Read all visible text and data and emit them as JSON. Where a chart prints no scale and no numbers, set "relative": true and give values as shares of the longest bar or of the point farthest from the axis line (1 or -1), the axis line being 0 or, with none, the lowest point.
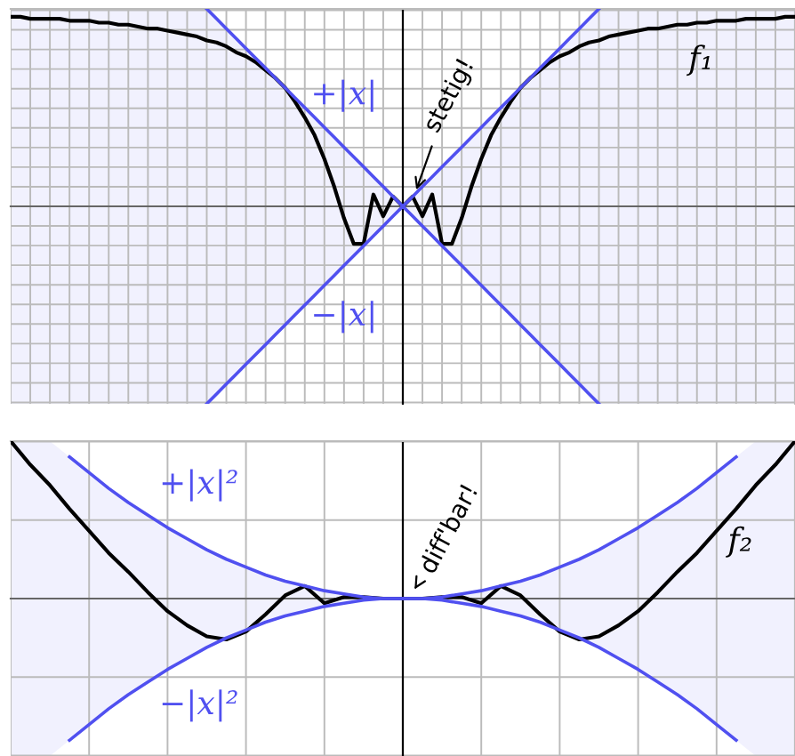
{
  "chart_data": [
    {
      "type": "line",
      "relative": true,
      "grid": true,
      "legend": false,
      "marker": "none",
      "line_style": "solid",
      "categories": [
        null,
        null,
        null,
        null,
        null,
        null,
        null,
        null,
        null,
        null,
        null,
        null,
        null,
        null,
        null,
        null,
        null,
        null,
        null,
        null,
        null,
        null,
        null,
        null,
        null,
        null,
        null,
        null,
        null,
        null,
        null,
        null,
        null,
        null,
        null,
        null,
        null,
        null,
        null,
        null,
        null,
        null,
        null,
        null,
        null,
        null,
        null,
        null,
        null,
        null,
        null,
        null,
        null,
        null,
        null,
        null,
        null,
        null,
        null,
        null,
        null,
        null,
        null,
        null,
        null,
        null,
        null,
        null,
        null,
        null,
        null,
        null,
        null,
        null,
        null,
        null,
        null,
        null,
        null,
        null,
        null
      ],
      "series": [
        {
          "name": "f₁",
          "color": "#000000",
          "values": [
            0.96,
            0.96,
            0.95,
            0.95,
            0.95,
            0.95,
            0.94,
            0.94,
            0.94,
            0.93,
            0.93,
            0.92,
            0.92,
            0.91,
            0.9,
            0.9,
            0.89,
            0.88,
            0.87,
            0.86,
            0.84,
            0.83,
            0.81,
            0.78,
            0.76,
            0.73,
            0.69,
            0.65,
            0.6,
            0.53,
            0.45,
            0.36,
            0.24,
            0.1,
            -0.06,
            -0.19,
            -0.19,
            0.06,
            -0.05,
            0.05,
            0,
            0.05,
            -0.05,
            0.06,
            -0.19,
            -0.19,
            -0.06,
            0.1,
            0.24,
            0.36,
            0.45,
            0.53,
            0.6,
            0.65,
            0.69,
            0.73,
            0.76,
            0.78,
            0.81,
            0.83,
            0.84,
            0.86,
            0.87,
            0.88,
            0.89,
            0.9,
            0.9,
            0.91,
            0.92,
            0.92,
            0.93,
            0.93,
            0.94,
            0.94,
            0.94,
            0.95,
            0.95,
            0.95,
            0.95,
            0.96,
            0.96
          ],
          "upper": [
            1,
            1,
            1,
            1,
            1,
            1,
            1,
            1,
            1,
            1,
            1,
            1,
            1,
            1,
            1,
            1,
            1,
            1,
            1,
            1,
            1,
            0.95,
            0.9,
            0.85,
            0.8,
            0.75,
            0.7,
            0.65,
            0.6,
            0.55,
            0.5,
            0.45,
            0.4,
            0.35,
            0.3,
            0.25,
            0.2,
            0.15,
            0.1,
            0.05,
            0,
            0.05,
            0.1,
            0.15,
            0.2,
            0.25,
            0.3,
            0.35,
            0.4,
            0.45,
            0.5,
            0.55,
            0.6,
            0.65,
            0.7,
            0.75,
            0.8,
            0.85,
            0.9,
            0.95,
            1,
            1,
            1,
            1,
            1,
            1,
            1,
            1,
            1,
            1,
            1,
            1,
            1,
            1,
            1,
            1,
            1,
            1,
            1,
            1,
            1
          ],
          "lower": [
            -1,
            -1,
            -1,
            -1,
            -1,
            -1,
            -1,
            -1,
            -1,
            -1,
            -1,
            -1,
            -1,
            -1,
            -1,
            -1,
            -1,
            -1,
            -1,
            -1,
            -1,
            -0.95,
            -0.9,
            -0.85,
            -0.8,
            -0.75,
            -0.7,
            -0.65,
            -0.6,
            -0.55,
            -0.5,
            -0.45,
            -0.4,
            -0.35,
            -0.3,
            -0.25,
            -0.2,
            -0.15,
            -0.1,
            -0.05,
            0,
            -0.05,
            -0.1,
            -0.15,
            -0.2,
            -0.25,
            -0.3,
            -0.35,
            -0.4,
            -0.45,
            -0.5,
            -0.55,
            -0.6,
            -0.65,
            -0.7,
            -0.75,
            -0.8,
            -0.85,
            -0.9,
            -0.95,
            -1,
            -1,
            -1,
            -1,
            -1,
            -1,
            -1,
            -1,
            -1,
            -1,
            -1,
            -1,
            -1,
            -1,
            -1,
            -1,
            -1,
            -1,
            -1,
            -1,
            -1
          ]
        },
        {
          "name": "+|x|",
          "color": "#5050f0",
          "values": [
            null,
            null,
            null,
            null,
            null,
            null,
            null,
            null,
            null,
            null,
            null,
            null,
            null,
            null,
            null,
            null,
            null,
            null,
            null,
            null,
            1,
            0.95,
            0.9,
            0.85,
            0.8,
            0.75,
            0.7,
            0.65,
            0.6,
            0.55,
            0.5,
            0.45,
            0.4,
            0.35,
            0.3,
            0.25,
            0.2,
            0.15,
            0.1,
            0.05,
            0,
            0.05,
            0.1,
            0.15,
            0.2,
            0.25,
            0.3,
            0.35,
            0.4,
            0.45,
            0.5,
            0.55,
            0.6,
            0.65,
            0.7,
            0.75,
            0.8,
            0.85,
            0.9,
            0.95,
            1,
            null,
            null,
            null,
            null,
            null,
            null,
            null,
            null,
            null,
            null,
            null,
            null,
            null,
            null,
            null,
            null,
            null,
            null,
            null,
            null
          ]
        },
        {
          "name": "−|x|",
          "color": "#5050f0",
          "values": [
            null,
            null,
            null,
            null,
            null,
            null,
            null,
            null,
            null,
            null,
            null,
            null,
            null,
            null,
            null,
            null,
            null,
            null,
            null,
            null,
            -1,
            -0.95,
            -0.9,
            -0.85,
            -0.8,
            -0.75,
            -0.7,
            -0.65,
            -0.6,
            -0.55,
            -0.5,
            -0.45,
            -0.4,
            -0.35,
            -0.3,
            -0.25,
            -0.2,
            -0.15,
            -0.1,
            -0.05,
            0,
            -0.05,
            -0.1,
            -0.15,
            -0.2,
            -0.25,
            -0.3,
            -0.35,
            -0.4,
            -0.45,
            -0.5,
            -0.55,
            -0.6,
            -0.65,
            -0.7,
            -0.75,
            -0.8,
            -0.85,
            -0.9,
            -0.95,
            -1,
            null,
            null,
            null,
            null,
            null,
            null,
            null,
            null,
            null,
            null,
            null,
            null,
            null,
            null,
            null,
            null,
            null,
            null,
            null,
            null
          ]
        }
      ],
      "annotations": [
        "stetig!"
      ]
    },
    {
      "type": "line",
      "relative": true,
      "grid": true,
      "legend": false,
      "marker": "none",
      "line_style": "solid",
      "categories": [
        null,
        null,
        null,
        null,
        null,
        null,
        null,
        null,
        null,
        null,
        null,
        null,
        null,
        null,
        null,
        null,
        null,
        null,
        null,
        null,
        null,
        null,
        null,
        null,
        null,
        null,
        null,
        null,
        null,
        null,
        null,
        null,
        null,
        null,
        null,
        null,
        null,
        null,
        null,
        null,
        null
      ],
      "series": [
        {
          "name": "f₂",
          "color": "#000000",
          "values": [
            1.0,
            0.85,
            0.72,
            0.57,
            0.43,
            0.29,
            0.17,
            0.04,
            -0.08,
            -0.17,
            -0.24,
            -0.26,
            -0.21,
            -0.1,
            0.02,
            0.08,
            -0.03,
            0.01,
            0.01,
            0,
            0,
            0,
            0.01,
            0.01,
            -0.03,
            0.08,
            0.02,
            -0.1,
            -0.21,
            -0.26,
            -0.24,
            -0.17,
            -0.08,
            0.04,
            0.17,
            0.29,
            0.43,
            0.57,
            0.72,
            0.85,
            1.0
          ],
          "upper": [
            1,
            1,
            1,
            0.9,
            0.8,
            0.7,
            0.61,
            0.53,
            0.45,
            0.38,
            0.31,
            0.25,
            0.2,
            0.15,
            0.11,
            0.08,
            0.05,
            0.03,
            0.01,
            0,
            0,
            0,
            0.01,
            0.03,
            0.05,
            0.08,
            0.11,
            0.15,
            0.2,
            0.25,
            0.31,
            0.38,
            0.45,
            0.53,
            0.61,
            0.7,
            0.8,
            0.9,
            1,
            1,
            1
          ],
          "lower": [
            -1,
            -1,
            -1,
            -0.9,
            -0.8,
            -0.7,
            -0.61,
            -0.53,
            -0.45,
            -0.38,
            -0.31,
            -0.25,
            -0.2,
            -0.15,
            -0.11,
            -0.08,
            -0.05,
            -0.03,
            -0.01,
            0,
            0,
            0,
            -0.01,
            -0.03,
            -0.05,
            -0.08,
            -0.11,
            -0.15,
            -0.2,
            -0.25,
            -0.31,
            -0.38,
            -0.45,
            -0.53,
            -0.61,
            -0.7,
            -0.8,
            -0.9,
            -1,
            -1,
            -1
          ]
        },
        {
          "name": "+|x|²",
          "color": "#5050f0",
          "values": [
            null,
            null,
            null,
            0.9,
            0.8,
            0.7,
            0.61,
            0.53,
            0.45,
            0.38,
            0.31,
            0.25,
            0.2,
            0.15,
            0.11,
            0.08,
            0.05,
            0.03,
            0.01,
            0,
            0,
            0,
            0.01,
            0.03,
            0.05,
            0.08,
            0.11,
            0.15,
            0.2,
            0.25,
            0.31,
            0.38,
            0.45,
            0.53,
            0.61,
            0.7,
            0.8,
            0.9,
            null,
            null,
            null
          ]
        },
        {
          "name": "−|x|²",
          "color": "#5050f0",
          "values": [
            null,
            null,
            null,
            -0.9,
            -0.8,
            -0.7,
            -0.61,
            -0.53,
            -0.45,
            -0.38,
            -0.31,
            -0.25,
            -0.2,
            -0.15,
            -0.11,
            -0.08,
            -0.05,
            -0.03,
            -0.01,
            0,
            0,
            0,
            -0.01,
            -0.03,
            -0.05,
            -0.08,
            -0.11,
            -0.15,
            -0.2,
            -0.25,
            -0.31,
            -0.38,
            -0.45,
            -0.53,
            -0.61,
            -0.7,
            -0.8,
            -0.9,
            null,
            null,
            null
          ]
        }
      ],
      "annotations": [
        "diff'bar!"
      ]
    }
  ]
}
